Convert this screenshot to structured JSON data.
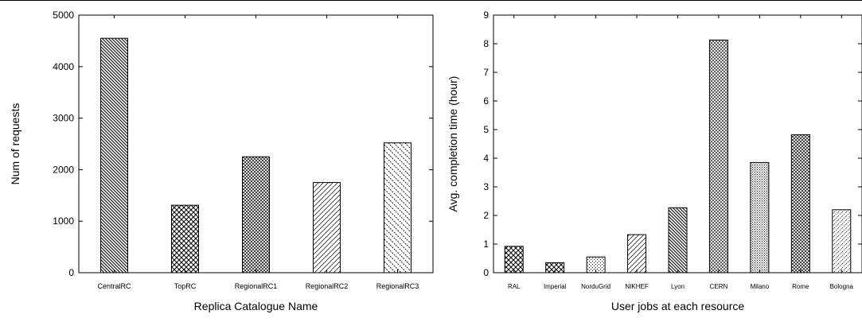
{
  "chart_data": [
    {
      "type": "bar",
      "title": "",
      "xlabel": "Replica Catalogue Name",
      "ylabel": "Num of requests",
      "categories": [
        "CentralRC",
        "TopRC",
        "RegionalRC1",
        "RegionalRC2",
        "RegionalRC3"
      ],
      "values": [
        4550,
        1310,
        2250,
        1750,
        2520
      ],
      "ylim": [
        0,
        5000
      ],
      "yticks": [
        "0",
        "1000",
        "2000",
        "3000",
        "4000",
        "5000"
      ],
      "patterns": [
        "dense-backslash-hatch",
        "crosshatch",
        "diamond-crosshatch",
        "slash-hatch",
        "dashed-backslash-hatch"
      ],
      "grid": false,
      "legend": "none"
    },
    {
      "type": "bar",
      "title": "",
      "xlabel": "User jobs at each resource",
      "ylabel": "Avg. completion time (hour)",
      "categories": [
        "RAL",
        "Imperial",
        "NorduGrid",
        "NIKHEF",
        "Lyon",
        "CERN",
        "Milano",
        "Rome",
        "Bologna"
      ],
      "values": [
        0.92,
        0.35,
        0.55,
        1.33,
        2.27,
        8.13,
        3.85,
        4.82,
        2.2
      ],
      "ylim": [
        0,
        9
      ],
      "yticks": [
        "0",
        "1",
        "2",
        "3",
        "4",
        "5",
        "6",
        "7",
        "8",
        "9"
      ],
      "patterns": [
        "crosshatch",
        "crosshatch",
        "dots",
        "slash-hatch",
        "dense-backslash-hatch",
        "fine-crosshatch",
        "dots-dense",
        "diamond-crosshatch",
        "dotted-slash"
      ],
      "grid": false,
      "legend": "none"
    }
  ]
}
